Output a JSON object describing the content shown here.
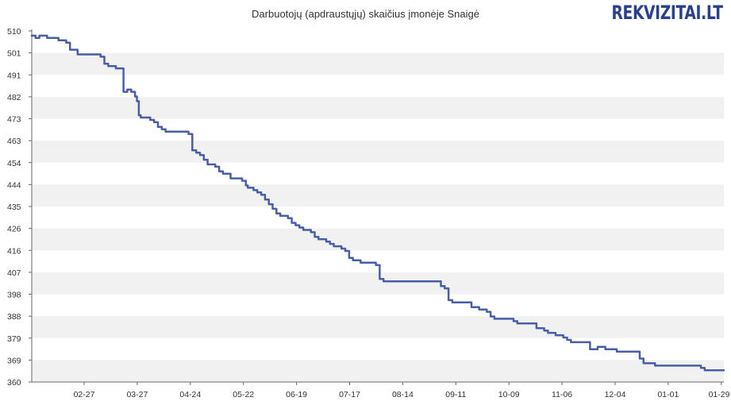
{
  "brand": {
    "name_part": "REKVIZITAI",
    "tld_part": ".LT",
    "color": "#2a3f8f"
  },
  "colors": {
    "line": "#4a5ea8",
    "band": "#f1f1f1",
    "axis": "#666666"
  },
  "chart_data": {
    "type": "line",
    "title": "Darbuotojų (apdraustųjų) skaičius įmonėje Snaigė",
    "xlabel": "",
    "ylabel": "",
    "ylim": [
      360,
      510
    ],
    "y_ticks": [
      "510",
      "501",
      "491",
      "482",
      "473",
      "463",
      "454",
      "444",
      "435",
      "426",
      "416",
      "407",
      "398",
      "388",
      "379",
      "369",
      "360"
    ],
    "x_ticks": [
      "02-27",
      "03-27",
      "04-24",
      "05-22",
      "06-19",
      "07-17",
      "08-14",
      "09-11",
      "10-09",
      "11-06",
      "12-04",
      "01-01",
      "01-29"
    ],
    "grid": "alternating horizontal bands",
    "series": [
      {
        "x": [
          0,
          1,
          2,
          3,
          4,
          6,
          8,
          10,
          14,
          16,
          18,
          20,
          24,
          28,
          32,
          34,
          36,
          38,
          40,
          44,
          48,
          50,
          52,
          54,
          55,
          56,
          57,
          58,
          60,
          62,
          64,
          66,
          68,
          70,
          72,
          76,
          80,
          82,
          84,
          86,
          88,
          90,
          92,
          94,
          96,
          98,
          100,
          104,
          110,
          112,
          113,
          114,
          116,
          118,
          120,
          122,
          124,
          126,
          128,
          130,
          132,
          134,
          136,
          138,
          140,
          142,
          144,
          146,
          148,
          150,
          152,
          154,
          156,
          158,
          160,
          162,
          164,
          166,
          168,
          170,
          172,
          174,
          176,
          178,
          180,
          182,
          184,
          186,
          188,
          190,
          192,
          194,
          196,
          198,
          200,
          202,
          204,
          206,
          208,
          210,
          212,
          214,
          216,
          218,
          220,
          222,
          224,
          226,
          228,
          230,
          232,
          234,
          236,
          238,
          240,
          242,
          244,
          246,
          248,
          250,
          252,
          254,
          256,
          258,
          260,
          262,
          264,
          266,
          268,
          270,
          272,
          274,
          276,
          278,
          280,
          282,
          284,
          286,
          288,
          290,
          292,
          294,
          296,
          298,
          300,
          302,
          304,
          306,
          308,
          310,
          312,
          314,
          316,
          318,
          320,
          322,
          324,
          326,
          328,
          330,
          332,
          334,
          336,
          338,
          340,
          342,
          344,
          346,
          348,
          350,
          352,
          354,
          356,
          358,
          360,
          362
        ],
        "y": [
          508,
          508,
          507,
          507,
          508,
          508,
          507,
          507,
          506,
          506,
          505,
          502,
          500,
          500,
          500,
          500,
          499,
          496,
          495,
          494,
          484,
          485,
          484,
          482,
          480,
          474,
          473,
          473,
          473,
          472,
          471,
          469,
          468,
          467,
          467,
          467,
          467,
          466,
          459,
          458,
          457,
          455,
          453,
          453,
          452,
          450,
          449,
          447,
          446,
          444,
          443,
          443,
          442,
          441,
          440,
          438,
          436,
          434,
          432,
          431,
          431,
          430,
          428,
          427,
          426,
          425,
          425,
          424,
          422,
          421,
          421,
          420,
          419,
          418,
          418,
          417,
          416,
          413,
          412,
          412,
          411,
          411,
          411,
          411,
          410,
          404,
          403,
          403,
          403,
          403,
          403,
          403,
          403,
          403,
          403,
          403,
          403,
          403,
          403,
          403,
          403,
          401,
          400,
          395,
          394,
          394,
          394,
          394,
          394,
          392,
          392,
          391,
          391,
          390,
          388,
          387,
          387,
          387,
          387,
          387,
          386,
          385,
          385,
          385,
          385,
          385,
          383,
          383,
          382,
          381,
          381,
          380,
          380,
          379,
          378,
          377,
          377,
          377,
          377,
          377,
          374,
          374,
          375,
          375,
          374,
          374,
          374,
          373,
          373,
          373,
          373,
          373,
          373,
          370,
          368,
          368,
          368,
          367,
          367,
          367,
          367,
          367,
          367,
          367,
          367,
          367,
          367,
          367,
          367,
          366,
          365,
          365,
          365,
          365,
          365,
          365
        ]
      }
    ]
  }
}
